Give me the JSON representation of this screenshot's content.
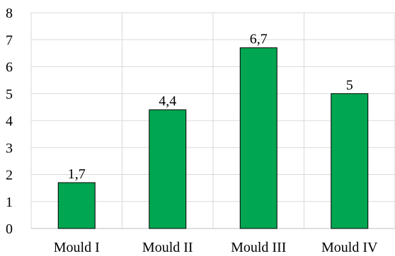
{
  "chart_data": {
    "type": "bar",
    "categories": [
      "Mould I",
      "Mould II",
      "Mould III",
      "Mould IV"
    ],
    "values": [
      1.7,
      4.4,
      6.7,
      5
    ],
    "data_labels": [
      "1,7",
      "4,4",
      "6,7",
      "5"
    ],
    "title": "",
    "xlabel": "",
    "ylabel": "",
    "ylim": [
      0,
      8
    ],
    "yticks": [
      0,
      1,
      2,
      3,
      4,
      5,
      6,
      7,
      8
    ],
    "grid": true,
    "legend": "none"
  },
  "colors": {
    "bar_fill": "#00A651",
    "bar_stroke": "#000000",
    "grid": "#d9d9d9",
    "axis": "#bfbfbf",
    "text": "#000000"
  }
}
